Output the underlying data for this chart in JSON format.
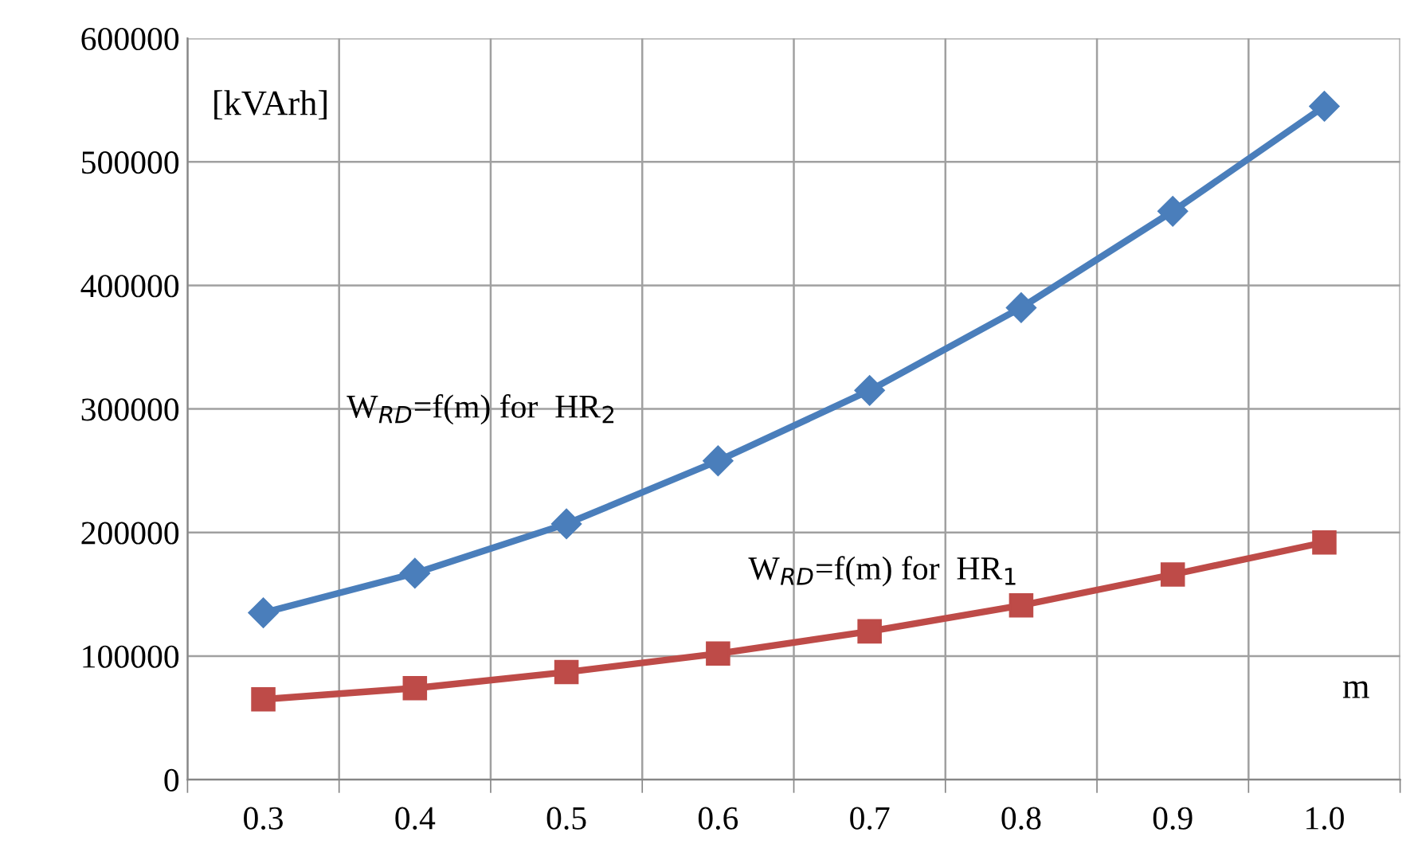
{
  "chart_data": {
    "type": "line",
    "xlabel": "m",
    "ylabel": "[kVArh]",
    "categories": [
      "0.3",
      "0.4",
      "0.5",
      "0.6",
      "0.7",
      "0.8",
      "0.9",
      "1.0"
    ],
    "series": [
      {
        "name": "W$_{RD}$=f(m) for  HR$_{2}$",
        "color": "#4a7ebb",
        "marker": "diamond",
        "values": [
          135000,
          167000,
          207000,
          258000,
          315000,
          382000,
          460000,
          545000
        ]
      },
      {
        "name": "W$_{RD}$=f(m) for  HR$_{1}$",
        "color": "#be4b48",
        "marker": "square",
        "values": [
          65000,
          74000,
          87000,
          102000,
          120000,
          141000,
          166000,
          192000
        ]
      }
    ],
    "ylim": [
      0,
      600000
    ],
    "yticks": [
      0,
      100000,
      200000,
      300000,
      400000,
      500000,
      600000
    ],
    "grid": true,
    "legend": false,
    "line_style": "solid"
  }
}
